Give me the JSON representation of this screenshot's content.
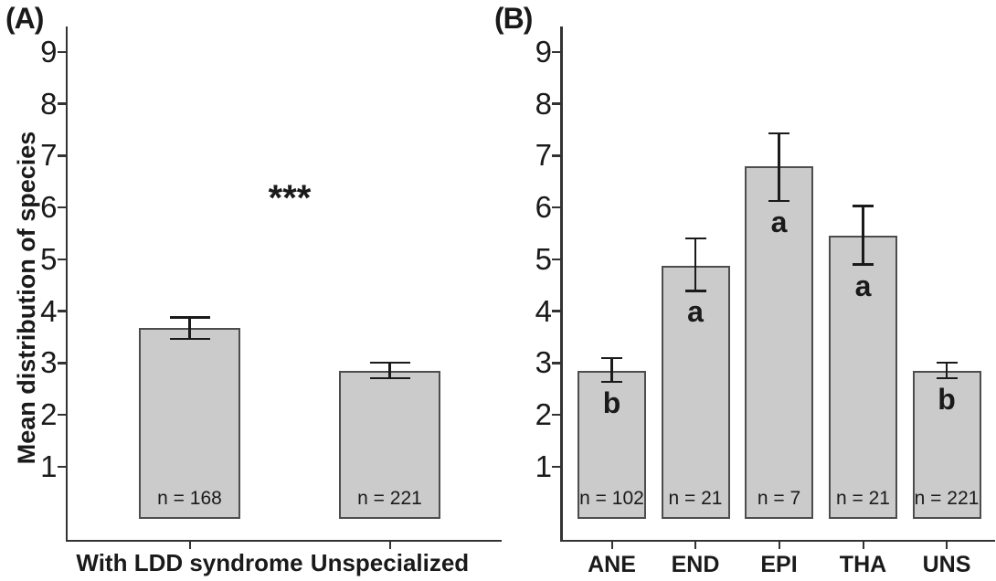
{
  "figure": {
    "panel_a_label": "(A)",
    "panel_b_label": "(B)",
    "y_axis_label": "Mean distribution of species",
    "significance_marker": "***",
    "colors": {
      "background": "#ffffff",
      "bar_fill": "#cbcbcb",
      "bar_border": "#4d4d4d",
      "axis": "#333333",
      "text": "#1a1a1a"
    }
  },
  "chart_data": [
    {
      "type": "bar",
      "panel": "A",
      "title": "",
      "xlabel": "",
      "ylabel": "Mean distribution of species",
      "ylim": [
        0,
        9.5
      ],
      "y_ticks": [
        1,
        2,
        3,
        4,
        5,
        6,
        7,
        8,
        9
      ],
      "grid": false,
      "categories": [
        "With LDD syndrome",
        "Unspecialized"
      ],
      "values": [
        3.67,
        2.84
      ],
      "error_low": [
        3.47,
        2.7
      ],
      "error_high": [
        3.88,
        3.0
      ],
      "sample_sizes": [
        "n = 168",
        "n = 221"
      ],
      "significance": "***",
      "letters": []
    },
    {
      "type": "bar",
      "panel": "B",
      "title": "",
      "xlabel": "",
      "ylabel": "",
      "ylim": [
        0,
        9.5
      ],
      "y_ticks": [
        1,
        2,
        3,
        4,
        5,
        6,
        7,
        8,
        9
      ],
      "grid": false,
      "categories": [
        "ANE",
        "END",
        "EPI",
        "THA",
        "UNS"
      ],
      "values": [
        2.85,
        4.88,
        6.79,
        5.46,
        2.85
      ],
      "error_low": [
        2.63,
        4.39,
        6.12,
        4.9,
        2.7
      ],
      "error_high": [
        3.09,
        5.4,
        7.43,
        6.03,
        3.0
      ],
      "sample_sizes": [
        "n = 102",
        "n = 21",
        "n = 7",
        "n = 21",
        "n = 221"
      ],
      "significance": "",
      "letters": [
        "b",
        "a",
        "a",
        "a",
        "b"
      ]
    }
  ]
}
